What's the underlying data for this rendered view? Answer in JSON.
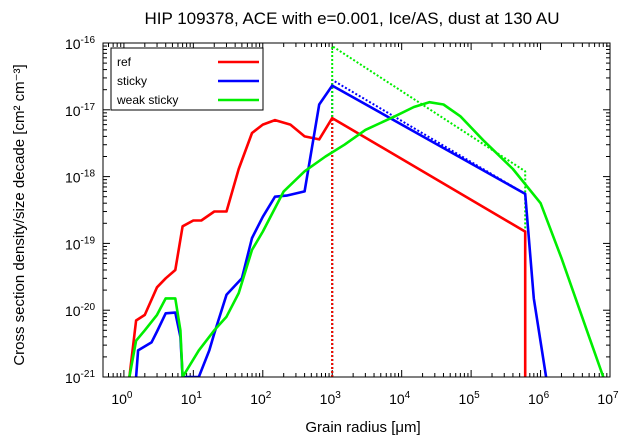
{
  "chart_data": {
    "type": "line",
    "title": "HIP 109378, ACE with e=0.001, Ice/AS, dust at 130 AU",
    "xlabel": "Grain radius [μm]",
    "ylabel": "Cross section density/size decade [cm² cm⁻³]",
    "xscale": "log",
    "yscale": "log",
    "xlim": [
      0.5,
      10000000
    ],
    "ylim": [
      1e-21,
      1e-16
    ],
    "x_ticks": [
      {
        "value": 1,
        "mantissa": "10",
        "exponent": "0"
      },
      {
        "value": 10,
        "mantissa": "10",
        "exponent": "1"
      },
      {
        "value": 100,
        "mantissa": "10",
        "exponent": "2"
      },
      {
        "value": 1000,
        "mantissa": "10",
        "exponent": "3"
      },
      {
        "value": 10000,
        "mantissa": "10",
        "exponent": "4"
      },
      {
        "value": 100000,
        "mantissa": "10",
        "exponent": "5"
      },
      {
        "value": 1000000,
        "mantissa": "10",
        "exponent": "6"
      },
      {
        "value": 10000000,
        "mantissa": "10",
        "exponent": "7"
      }
    ],
    "y_ticks": [
      {
        "value": 1e-21,
        "mantissa": "10",
        "exponent": "-21"
      },
      {
        "value": 1e-20,
        "mantissa": "10",
        "exponent": "-20"
      },
      {
        "value": 1e-19,
        "mantissa": "10",
        "exponent": "-19"
      },
      {
        "value": 1e-18,
        "mantissa": "10",
        "exponent": "-18"
      },
      {
        "value": 1e-17,
        "mantissa": "10",
        "exponent": "-17"
      },
      {
        "value": 1e-16,
        "mantissa": "10",
        "exponent": "-16"
      }
    ],
    "legend_position": "top-left",
    "grid": false,
    "series": [
      {
        "name": "ref",
        "color": "#ff0000",
        "style": "solid",
        "points": [
          [
            1.2,
            1e-21
          ],
          [
            1.5,
            7e-21
          ],
          [
            2,
            8.5e-21
          ],
          [
            3,
            2.2e-20
          ],
          [
            4,
            3e-20
          ],
          [
            5.5,
            4e-20
          ],
          [
            7,
            1.8e-19
          ],
          [
            10,
            2.2e-19
          ],
          [
            13,
            2.2e-19
          ],
          [
            20,
            3e-19
          ],
          [
            30,
            3e-19
          ],
          [
            45,
            1.3e-18
          ],
          [
            70,
            4.5e-18
          ],
          [
            100,
            6e-18
          ],
          [
            150,
            7e-18
          ],
          [
            250,
            6e-18
          ],
          [
            400,
            4e-18
          ],
          [
            650,
            3.6e-18
          ],
          [
            1000,
            7.5e-18
          ],
          [
            600000,
            1.5e-19
          ],
          [
            600000,
            1e-21
          ]
        ]
      },
      {
        "name": "sticky",
        "color": "#0000ff",
        "style": "solid",
        "points": [
          [
            1.5,
            1e-21
          ],
          [
            1.6,
            2.5e-21
          ],
          [
            2.5,
            3.3e-21
          ],
          [
            3,
            4.8e-21
          ],
          [
            4,
            9e-21
          ],
          [
            5.5,
            9.2e-21
          ],
          [
            6.5,
            4e-21
          ],
          [
            7,
            1e-21
          ],
          [
            12,
            1e-21
          ],
          [
            17,
            2.5e-21
          ],
          [
            20,
            4.5e-21
          ],
          [
            30,
            1.7e-20
          ],
          [
            50,
            3e-20
          ],
          [
            70,
            1.2e-19
          ],
          [
            100,
            2.5e-19
          ],
          [
            150,
            5e-19
          ],
          [
            220,
            5.2e-19
          ],
          [
            400,
            6e-19
          ],
          [
            650,
            1.2e-17
          ],
          [
            1000,
            2.3e-17
          ],
          [
            600000,
            5.5e-19
          ],
          [
            800000,
            1.5e-20
          ],
          [
            1200000,
            1e-21
          ]
        ]
      },
      {
        "name": "weak sticky",
        "color": "#00ee00",
        "style": "solid",
        "points": [
          [
            1.2,
            1e-21
          ],
          [
            1.5,
            3.5e-21
          ],
          [
            2,
            5e-21
          ],
          [
            3,
            8.5e-21
          ],
          [
            4,
            1.5e-20
          ],
          [
            5.5,
            1.5e-20
          ],
          [
            6.5,
            5e-21
          ],
          [
            7,
            1e-21
          ],
          [
            12,
            2.5e-21
          ],
          [
            20,
            5e-21
          ],
          [
            30,
            8e-21
          ],
          [
            45,
            1.8e-20
          ],
          [
            70,
            8e-20
          ],
          [
            100,
            1.5e-19
          ],
          [
            200,
            6e-19
          ],
          [
            400,
            1.2e-18
          ],
          [
            800,
            2e-18
          ],
          [
            1500,
            3e-18
          ],
          [
            3000,
            5e-18
          ],
          [
            8000,
            8e-18
          ],
          [
            15000,
            1.1e-17
          ],
          [
            25000,
            1.3e-17
          ],
          [
            40000,
            1.2e-17
          ],
          [
            70000,
            8e-18
          ],
          [
            150000,
            3.5e-18
          ],
          [
            400000,
            1.3e-18
          ],
          [
            1000000,
            4e-19
          ],
          [
            2000000,
            6e-20
          ],
          [
            5000000,
            4e-21
          ],
          [
            8000000,
            1e-21
          ]
        ]
      },
      {
        "name": "",
        "color": "#0000ff",
        "style": "dotted",
        "points": [
          [
            1000,
            1e-21
          ],
          [
            1000,
            2.8e-17
          ],
          [
            600000,
            5.5e-19
          ]
        ]
      },
      {
        "name": "",
        "color": "#00ee00",
        "style": "dotted",
        "points": [
          [
            1000,
            1e-21
          ],
          [
            1000,
            9e-17
          ],
          [
            600000,
            1.2e-18
          ],
          [
            600000,
            1e-21
          ]
        ]
      },
      {
        "name": "",
        "color": "#ff0000",
        "style": "dotted",
        "points": [
          [
            1000,
            1e-21
          ],
          [
            1000,
            7.5e-18
          ],
          [
            600000,
            1.5e-19
          ],
          [
            600000,
            1e-21
          ]
        ]
      }
    ]
  }
}
